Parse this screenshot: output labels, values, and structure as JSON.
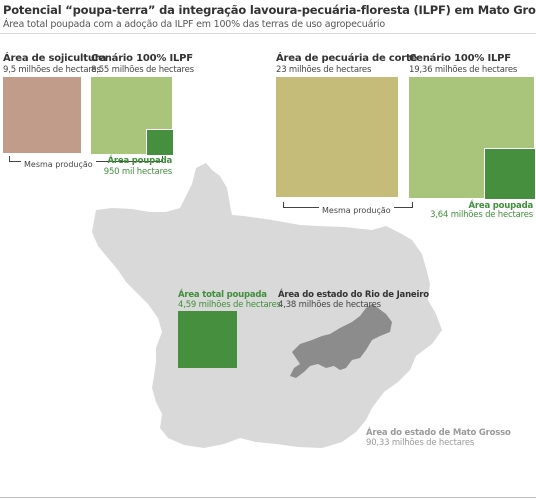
{
  "header": {
    "title": "Potencial “poupa-terra” da integração lavoura-pecuária-floresta (ILPF) em Mato Grosso",
    "subtitle": "Área total poupada com a adoção da ILPF em 100% das terras de uso agropecuário"
  },
  "soy": {
    "area_label": "Área de sojicultura",
    "area_value": "9,5 milhões de hectares",
    "scenario_label": "Cenário 100% ILPF",
    "scenario_value": "8,55 milhões de hectares",
    "saved_label": "Área poupada",
    "saved_value": "950 mil hectares",
    "same_production": "Mesma produção"
  },
  "cattle": {
    "area_label": "Área de pecuária de corte",
    "area_value": "23 milhões de hectares",
    "scenario_label": "Cenário 100% ILPF",
    "scenario_value": "19,36 milhões de hectares",
    "saved_label": "Área poupada",
    "saved_value": "3,64 milhões de hectares",
    "same_production": "Mesma produção"
  },
  "map": {
    "total_saved_label": "Área total poupada",
    "total_saved_value": "4,59 milhões de hectares",
    "rj_label": "Área do estado do Rio de Janeiro",
    "rj_value": "4,38 milhões de hectares",
    "mt_label": "Área do estado de Mato Grosso",
    "mt_value": "90,33 milhões de hectares"
  },
  "colors": {
    "soy_area": "#c29c8a",
    "ilpf_area": "#a9c47b",
    "cattle_area": "#c6bc79",
    "saved_green": "#468f3e",
    "mt_state": "#d9d9d9",
    "rj_state": "#8c8c8c"
  }
}
